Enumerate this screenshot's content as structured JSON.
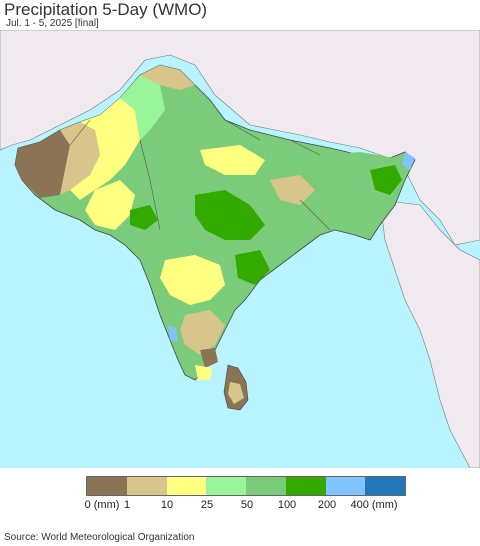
{
  "title": "Precipitation 5-Day (WMO)",
  "subtitle": "Jul. 1 - 5, 2025 [final]",
  "source": "Source: World Meteorological Organization",
  "legend": {
    "colors": [
      "#8b7355",
      "#d8c58c",
      "#ffff80",
      "#99f599",
      "#7acc7a",
      "#33aa00",
      "#80c4ff",
      "#2277bb"
    ],
    "tick_labels": [
      "0 (mm)",
      "1",
      "10",
      "25",
      "50",
      "100",
      "200",
      "400 (mm)"
    ]
  },
  "map_colors": {
    "ocean": "#b8f4ff",
    "outside_land": "#f0eaf0",
    "border": "#444444"
  }
}
